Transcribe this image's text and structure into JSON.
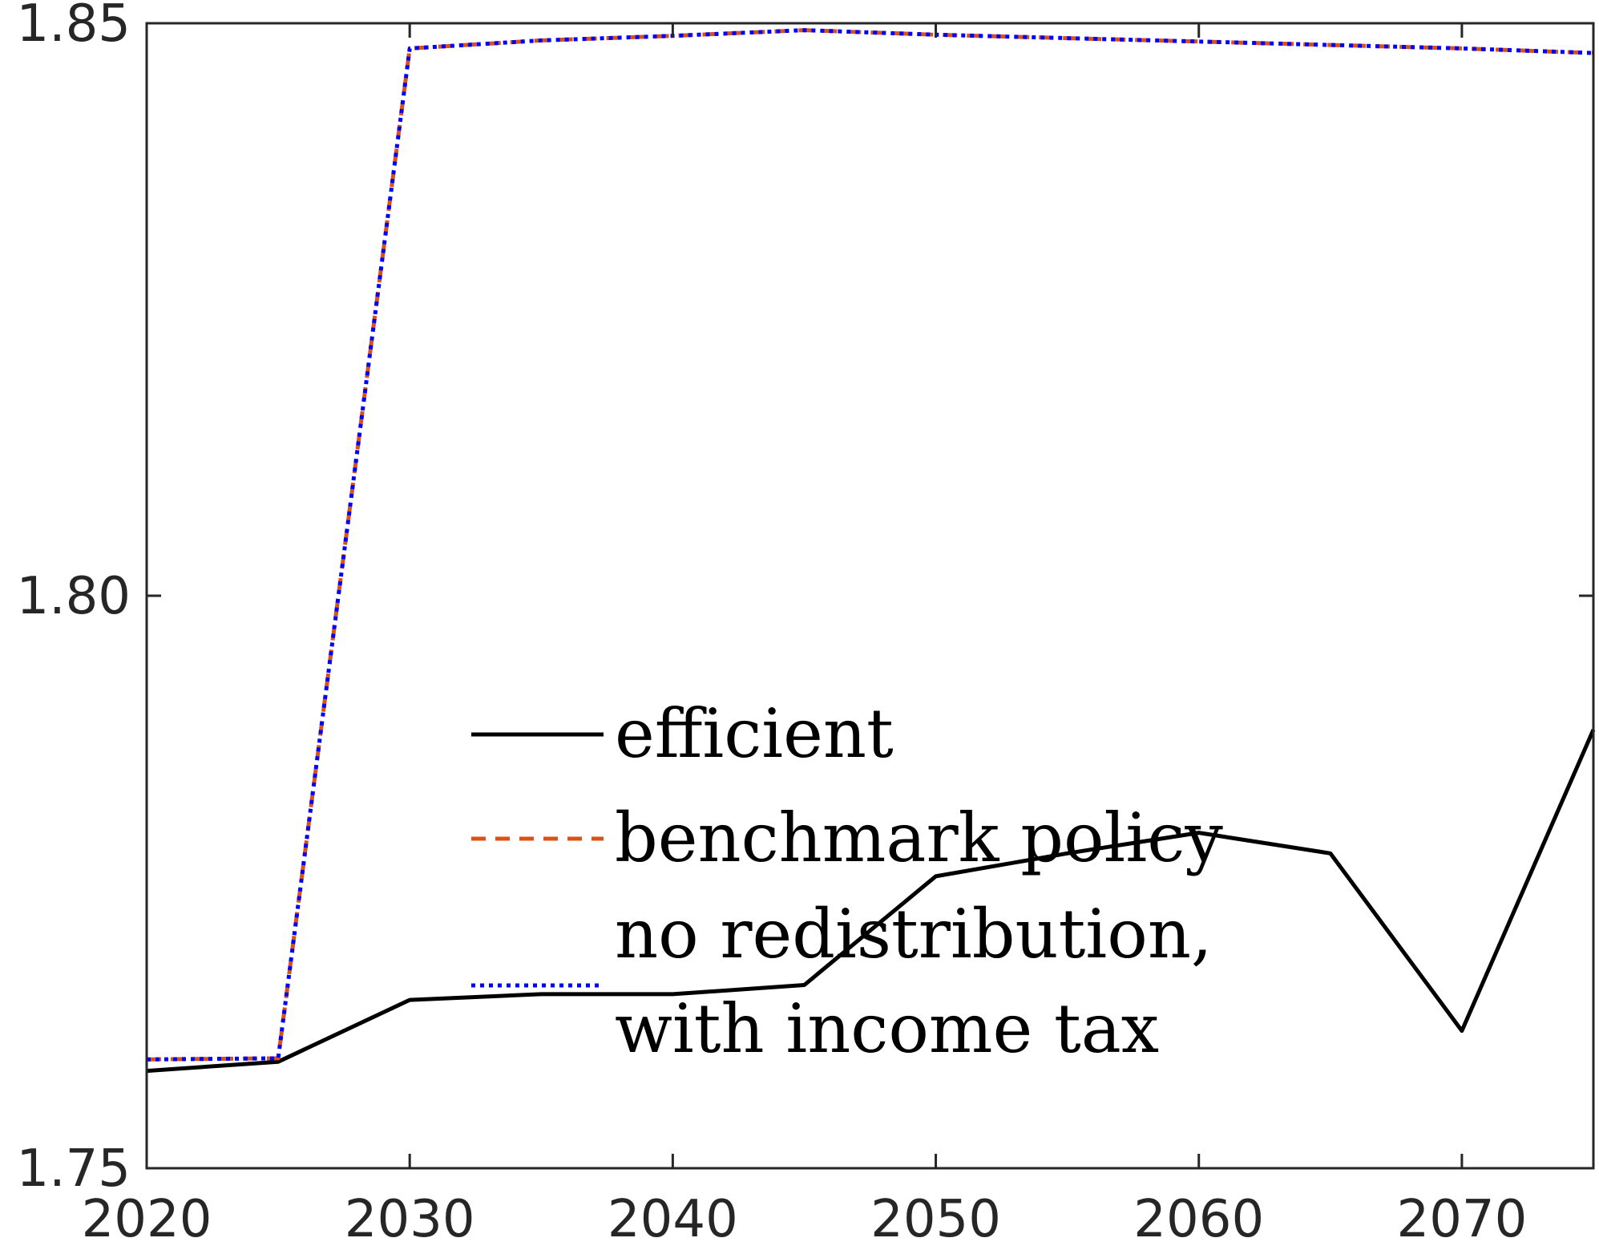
{
  "chart_data": {
    "type": "line",
    "title": "",
    "xlabel": "",
    "ylabel": "",
    "xlim": [
      2020,
      2075
    ],
    "ylim": [
      1.75,
      1.85
    ],
    "x_ticks": [
      2020,
      2030,
      2040,
      2050,
      2060,
      2070
    ],
    "x_tick_labels": [
      "2020",
      "2030",
      "2040",
      "2050",
      "2060",
      "2070"
    ],
    "y_ticks": [
      1.75,
      1.8,
      1.85
    ],
    "y_tick_labels": [
      "1.75",
      "1.80",
      "1.85"
    ],
    "grid": false,
    "legend_position": "center",
    "x": [
      2020,
      2025,
      2030,
      2035,
      2040,
      2045,
      2050,
      2055,
      2060,
      2065,
      2070,
      2075
    ],
    "series": [
      {
        "name": "efficient",
        "label_lines": [
          "efficient"
        ],
        "color": "#000000",
        "style": "solid",
        "values": [
          1.7585,
          1.7593,
          1.7647,
          1.7652,
          1.7652,
          1.766,
          1.7755,
          1.7775,
          1.7793,
          1.7775,
          1.762,
          1.7883
        ]
      },
      {
        "name": "benchmark policy",
        "label_lines": [
          "benchmark policy"
        ],
        "color": "#D95319",
        "style": "dashed",
        "values": [
          1.7595,
          1.7596,
          1.8478,
          1.8485,
          1.8489,
          1.8494,
          1.849,
          1.8487,
          1.8484,
          1.8481,
          1.8478,
          1.8474
        ]
      },
      {
        "name": "no redistribution, with income tax",
        "label_lines": [
          "no redistribution,",
          "with income tax"
        ],
        "color": "#0000FF",
        "style": "dotted",
        "values": [
          1.7595,
          1.7596,
          1.8478,
          1.8485,
          1.8489,
          1.8494,
          1.849,
          1.8487,
          1.8484,
          1.8481,
          1.8478,
          1.8474
        ]
      }
    ]
  }
}
